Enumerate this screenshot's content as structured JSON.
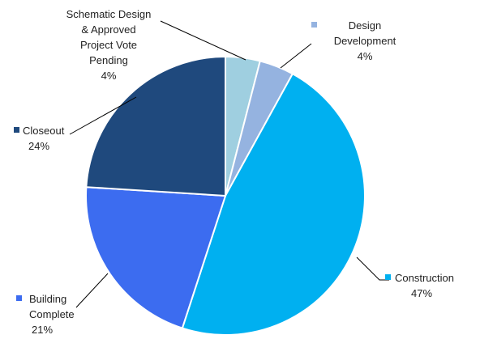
{
  "chart_data": {
    "type": "pie",
    "title": "",
    "legend": "none",
    "slices": [
      {
        "name": "Schematic Design & Approved Project Vote Pending",
        "name_lines": [
          "Schematic Design",
          "& Approved",
          "Project Vote",
          "Pending"
        ],
        "value": 4,
        "label": "4%",
        "color": "#9FCFE0"
      },
      {
        "name": "Design Development",
        "name_lines": [
          "Design",
          "Development"
        ],
        "value": 4,
        "label": "4%",
        "color": "#95B3E0"
      },
      {
        "name": "Construction",
        "name_lines": [
          "Construction"
        ],
        "value": 47,
        "label": "47%",
        "color": "#00B0F0"
      },
      {
        "name": "Building Complete",
        "name_lines": [
          "Building",
          "Complete"
        ],
        "value": 21,
        "label": "21%",
        "color": "#3C6CF0"
      },
      {
        "name": "Closeout",
        "name_lines": [
          "Closeout"
        ],
        "value": 24,
        "label": "24%",
        "color": "#1F497D"
      }
    ]
  }
}
